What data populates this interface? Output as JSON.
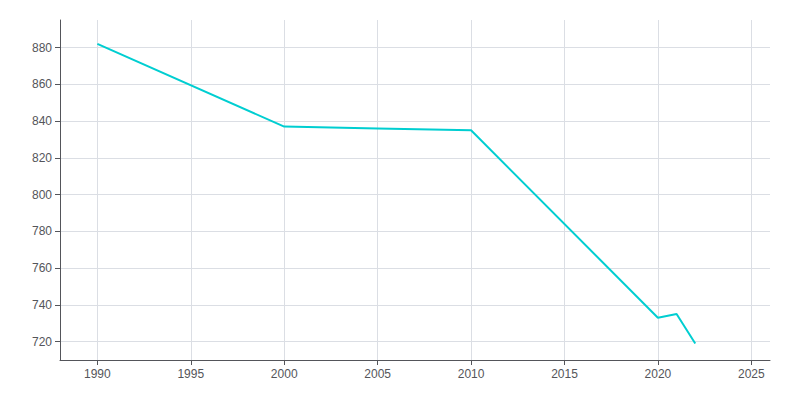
{
  "chart_data": {
    "type": "line",
    "x": [
      1990,
      2000,
      2005,
      2010,
      2020,
      2021,
      2022
    ],
    "values": [
      882,
      837,
      836,
      835,
      733,
      735,
      719
    ],
    "color": "#00CED1",
    "xlim": [
      1988,
      2026
    ],
    "ylim": [
      710,
      895
    ],
    "xticks": [
      1990,
      1995,
      2000,
      2005,
      2010,
      2015,
      2020,
      2025
    ],
    "yticks": [
      720,
      740,
      760,
      780,
      800,
      820,
      840,
      860,
      880
    ],
    "grid": true
  }
}
